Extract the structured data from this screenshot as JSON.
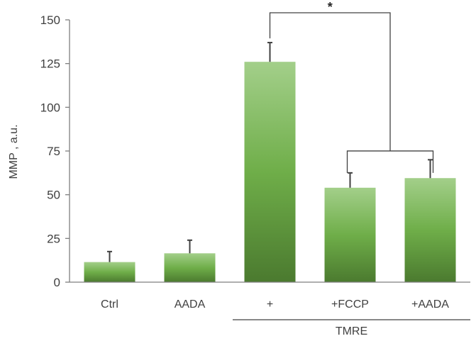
{
  "chart_data": {
    "type": "bar",
    "title": "",
    "xlabel": "",
    "ylabel": "MMP , a.u.",
    "ylim": [
      0,
      150
    ],
    "yticks": [
      0,
      25,
      50,
      75,
      100,
      125,
      150
    ],
    "grid": false,
    "categories": [
      "Ctrl",
      "AADA",
      "+",
      "+FCCP",
      "+AADA"
    ],
    "values": [
      11.5,
      16.5,
      126,
      54,
      59.5
    ],
    "errors": [
      6,
      7.5,
      11,
      8.5,
      10.5
    ],
    "group_label": {
      "text": "TMRE",
      "categories": [
        "+",
        "+FCCP",
        "+AADA"
      ]
    },
    "significance": {
      "label": "*",
      "compare": "+",
      "against": [
        "+FCCP",
        "+AADA"
      ]
    },
    "colors": {
      "bar_top": "#a3cf8a",
      "bar_mid": "#6fae49",
      "bar_bottom": "#4b7a2f",
      "axis": "#7f7f7f",
      "error": "#404040",
      "bracket": "#404040"
    }
  }
}
